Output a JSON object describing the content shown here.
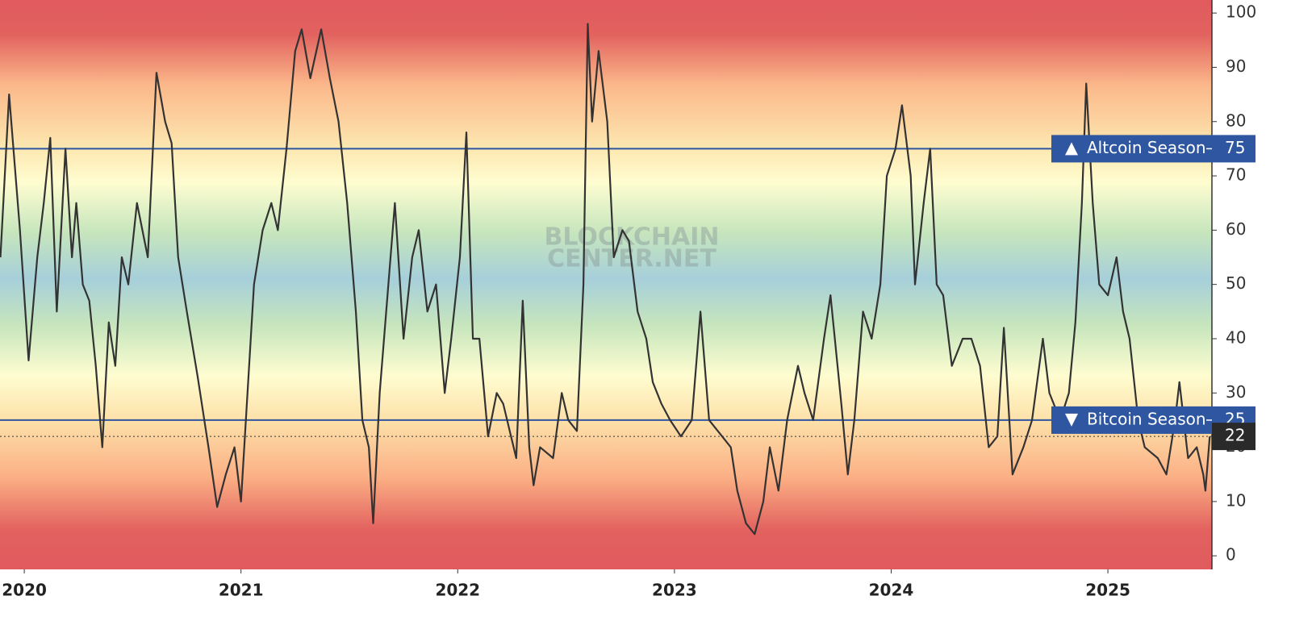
{
  "chart_data": {
    "type": "line",
    "watermark": [
      "BLOCKCHAIN",
      "CENTER.NET"
    ],
    "color": "#333333",
    "x": [
      2019.89,
      2019.93,
      2019.95,
      2019.98,
      2020.02,
      2020.06,
      2020.09,
      2020.12,
      2020.15,
      2020.19,
      2020.22,
      2020.24,
      2020.27,
      2020.3,
      2020.33,
      2020.36,
      2020.39,
      2020.42,
      2020.45,
      2020.48,
      2020.52,
      2020.57,
      2020.61,
      2020.65,
      2020.68,
      2020.71,
      2020.75,
      2020.8,
      2020.85,
      2020.89,
      2020.93,
      2020.97,
      2021.0,
      2021.03,
      2021.06,
      2021.1,
      2021.14,
      2021.17,
      2021.21,
      2021.25,
      2021.28,
      2021.32,
      2021.37,
      2021.41,
      2021.45,
      2021.49,
      2021.53,
      2021.56,
      2021.59,
      2021.61,
      2021.64,
      2021.68,
      2021.71,
      2021.75,
      2021.79,
      2021.82,
      2021.86,
      2021.9,
      2021.94,
      2021.97,
      2022.01,
      2022.04,
      2022.07,
      2022.1,
      2022.14,
      2022.18,
      2022.21,
      2022.27,
      2022.3,
      2022.33,
      2022.35,
      2022.38,
      2022.44,
      2022.48,
      2022.51,
      2022.55,
      2022.58,
      2022.6,
      2022.62,
      2022.65,
      2022.69,
      2022.72,
      2022.76,
      2022.79,
      2022.83,
      2022.87,
      2022.9,
      2022.94,
      2022.98,
      2023.03,
      2023.08,
      2023.12,
      2023.16,
      2023.22,
      2023.26,
      2023.29,
      2023.33,
      2023.37,
      2023.41,
      2023.44,
      2023.48,
      2023.52,
      2023.57,
      2023.6,
      2023.64,
      2023.69,
      2023.72,
      2023.77,
      2023.8,
      2023.83,
      2023.87,
      2023.91,
      2023.95,
      2023.98,
      2024.02,
      2024.05,
      2024.09,
      2024.11,
      2024.15,
      2024.18,
      2024.21,
      2024.24,
      2024.28,
      2024.33,
      2024.37,
      2024.41,
      2024.45,
      2024.49,
      2024.52,
      2024.56,
      2024.61,
      2024.65,
      2024.7,
      2024.73,
      2024.78,
      2024.82,
      2024.85,
      2024.88,
      2024.9,
      2024.93,
      2024.96,
      2025.0,
      2025.04,
      2025.07,
      2025.1,
      2025.14,
      2025.17,
      2025.23,
      2025.27,
      2025.31,
      2025.33,
      2025.37,
      2025.41,
      2025.44,
      2025.45,
      2025.47
    ],
    "values": [
      55,
      85,
      75,
      60,
      36,
      55,
      65,
      77,
      45,
      75,
      55,
      65,
      50,
      47,
      35,
      20,
      43,
      35,
      55,
      50,
      65,
      55,
      89,
      80,
      76,
      55,
      45,
      33,
      20,
      9,
      15,
      20,
      10,
      30,
      50,
      60,
      65,
      60,
      75,
      93,
      97,
      88,
      97,
      88,
      80,
      65,
      45,
      25,
      20,
      6,
      30,
      50,
      65,
      40,
      55,
      60,
      45,
      50,
      30,
      40,
      55,
      78,
      40,
      40,
      22,
      30,
      28,
      18,
      47,
      20,
      13,
      20,
      18,
      30,
      25,
      23,
      50,
      98,
      80,
      93,
      80,
      55,
      60,
      58,
      45,
      40,
      32,
      28,
      25,
      22,
      25,
      45,
      25,
      22,
      20,
      12,
      6,
      4,
      10,
      20,
      12,
      25,
      35,
      30,
      25,
      40,
      48,
      28,
      15,
      25,
      45,
      40,
      50,
      70,
      75,
      83,
      70,
      50,
      65,
      75,
      50,
      48,
      35,
      40,
      40,
      35,
      20,
      22,
      42,
      15,
      20,
      25,
      40,
      30,
      25,
      30,
      43,
      65,
      87,
      65,
      50,
      48,
      55,
      45,
      40,
      25,
      20,
      18,
      15,
      25,
      32,
      18,
      20,
      15,
      12,
      22
    ],
    "levels": [
      {
        "name": "Altcoin Season",
        "value": 75,
        "marker": "up"
      },
      {
        "name": "Bitcoin Season",
        "value": 25,
        "marker": "down"
      }
    ],
    "level_color": "#2f56a0",
    "current_value": 22,
    "xlim": [
      2019.888,
      2025.48
    ],
    "xticks": [
      2020,
      2021,
      2022,
      2023,
      2024,
      2025
    ],
    "ylim": [
      -2.5,
      102.4
    ],
    "yticks": [
      0,
      10,
      20,
      30,
      40,
      50,
      60,
      70,
      80,
      90,
      100
    ]
  }
}
